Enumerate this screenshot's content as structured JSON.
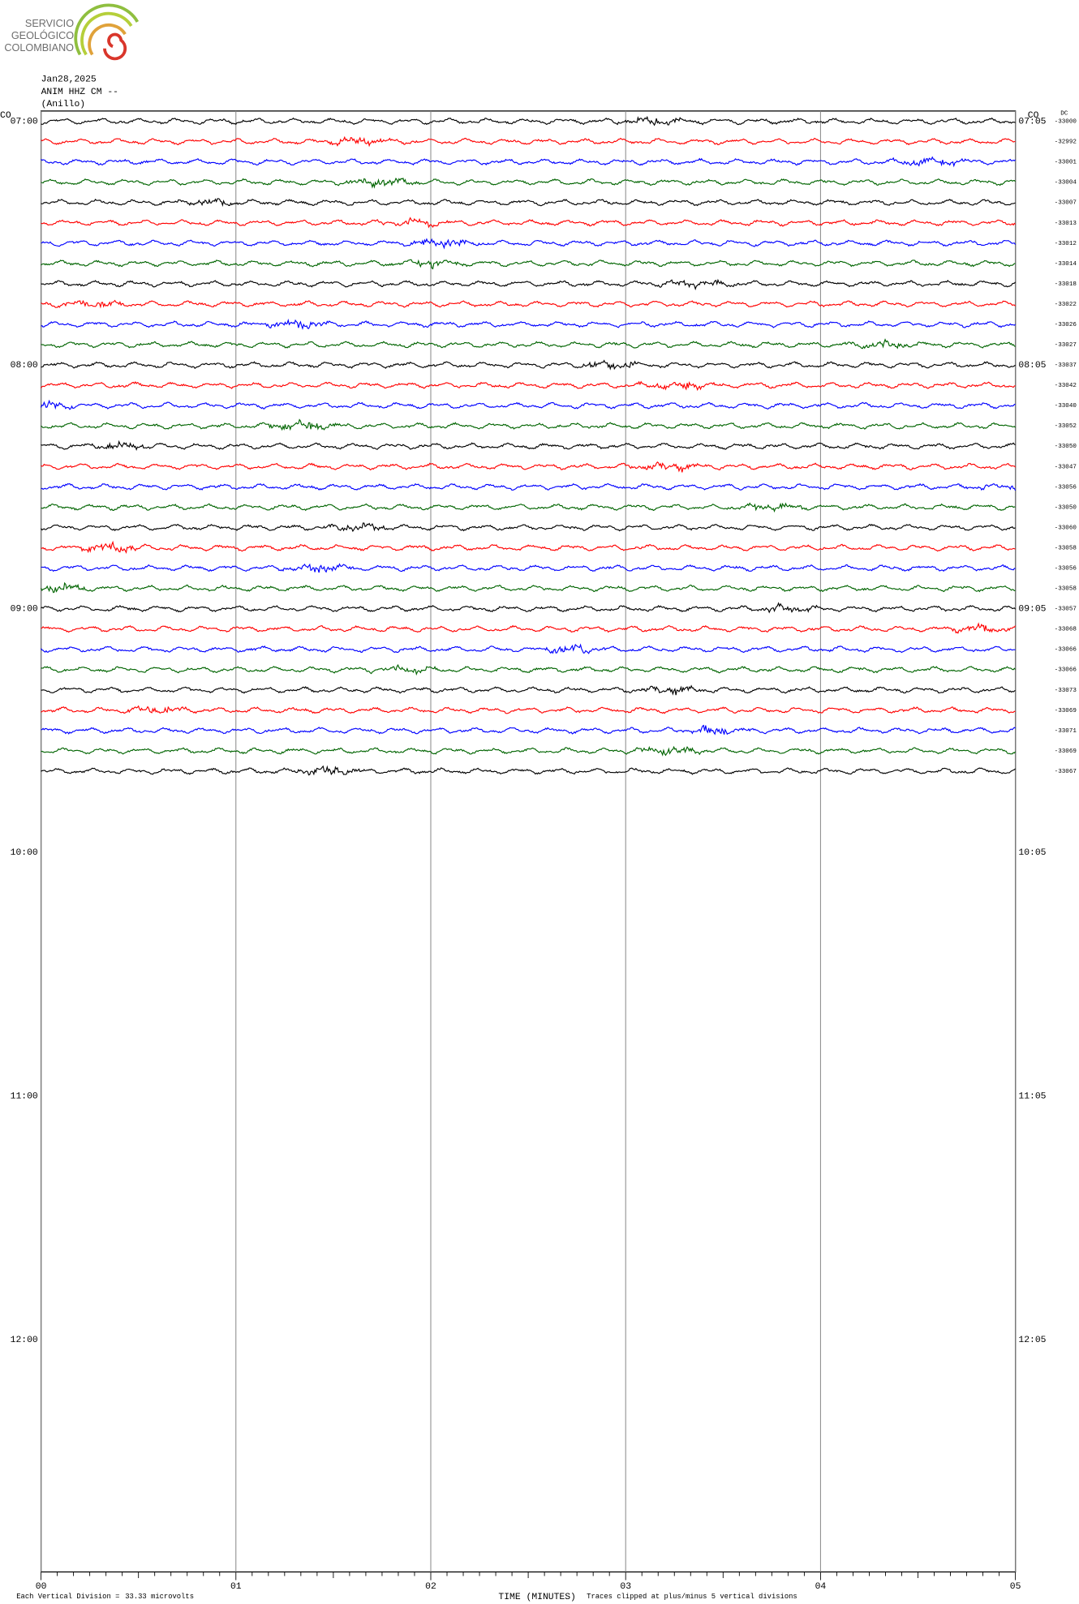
{
  "logo": {
    "lines": [
      "SERVICIO",
      "GEOLÓGICO",
      "COLOMBIANO"
    ]
  },
  "header": {
    "date": "Jan28,2025",
    "station": "ANIM HHZ CM --",
    "place": "(Anillo)",
    "left_corner": "CO",
    "right_corner": "CO",
    "dc_label": "DC"
  },
  "left_times": [
    "07:00",
    "08:00",
    "09:00",
    "10:00",
    "11:00",
    "12:00"
  ],
  "right_times": [
    "07:05",
    "08:05",
    "09:05",
    "10:05",
    "11:05",
    "12:05"
  ],
  "dc_values": [
    -33000,
    -32992,
    -33001,
    -33004,
    -33007,
    -33013,
    -33012,
    -33014,
    -33018,
    -33022,
    -33026,
    -33027,
    -33037,
    -33042,
    -33040,
    -33052,
    -33050,
    -33047,
    -33056,
    -33050,
    -33060,
    -33058,
    -33056,
    -33058,
    -33057,
    -33068,
    -33066,
    -33066,
    -33073,
    -33069,
    -33071,
    -33069,
    -33067
  ],
  "trace_colors": [
    "#000000",
    "#ff0000",
    "#0000ff",
    "#006400"
  ],
  "x_ticks": [
    "00",
    "01",
    "02",
    "03",
    "04",
    "05"
  ],
  "footer": {
    "division": "Each Vertical Division =",
    "scale": "33.33 microvolts",
    "axis_label": "TIME (MINUTES)",
    "clip_note": "Traces clipped at plus/minus 5 vertical divisions"
  }
}
